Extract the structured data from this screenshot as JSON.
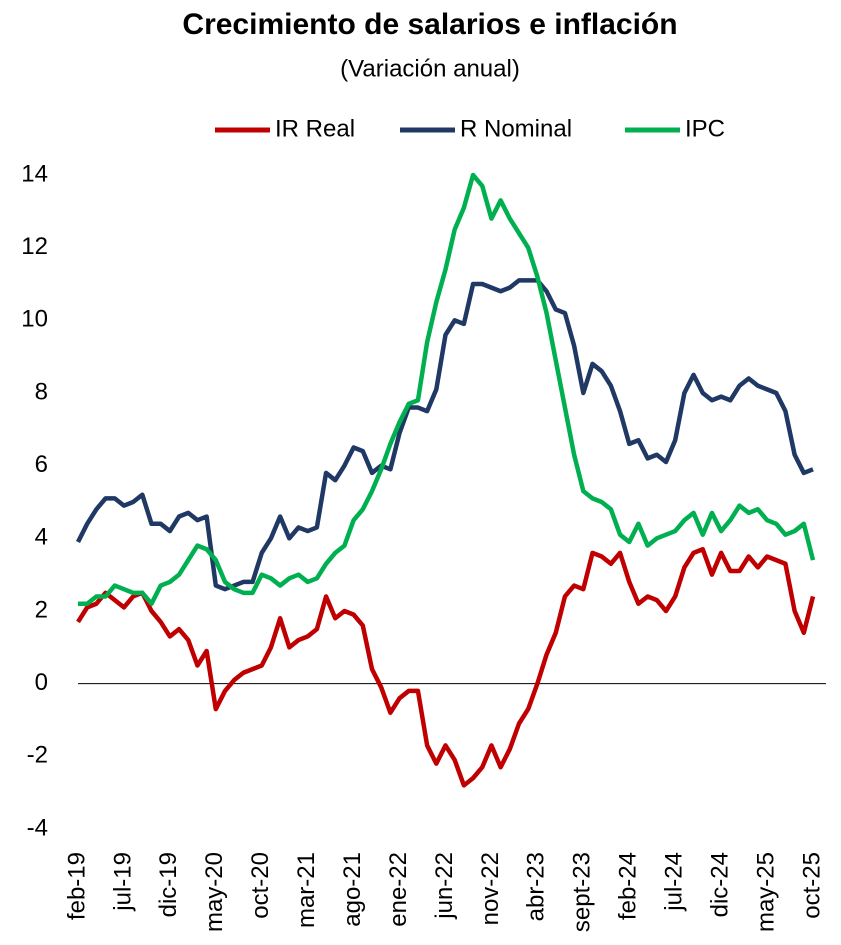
{
  "chart_data": {
    "type": "line",
    "title": "Crecimiento de salarios e inflación",
    "subtitle": "(Variación anual)",
    "categories": [
      "feb-19",
      null,
      null,
      null,
      null,
      "jul-19",
      null,
      null,
      null,
      null,
      "dic-19",
      null,
      null,
      null,
      null,
      "may-20",
      null,
      null,
      null,
      null,
      "oct-20",
      null,
      null,
      null,
      null,
      "mar-21",
      null,
      null,
      null,
      null,
      "ago-21",
      null,
      null,
      null,
      null,
      "ene-22",
      null,
      null,
      null,
      null,
      "jun-22",
      null,
      null,
      null,
      null,
      "nov-22",
      null,
      null,
      null,
      null,
      "abr-23",
      null,
      null,
      null,
      null,
      "sept-23",
      null,
      null,
      null,
      null,
      "feb-24",
      null,
      null,
      null,
      null,
      "jul-24",
      null,
      null,
      null,
      null,
      "dic-24",
      null,
      null,
      null,
      null,
      "may-25",
      null,
      null,
      null,
      null,
      "oct-25"
    ],
    "series": [
      {
        "name": "IR Real",
        "color": "#c00000",
        "values": [
          1.7,
          2.1,
          2.2,
          2.5,
          2.3,
          2.1,
          2.4,
          2.5,
          2.0,
          1.7,
          1.3,
          1.5,
          1.2,
          0.5,
          0.9,
          -0.7,
          -0.2,
          0.1,
          0.3,
          0.4,
          0.5,
          1.0,
          1.8,
          1.0,
          1.2,
          1.3,
          1.5,
          2.4,
          1.8,
          2.0,
          1.9,
          1.6,
          0.4,
          -0.1,
          -0.8,
          -0.4,
          -0.2,
          -0.2,
          -1.7,
          -2.2,
          -1.7,
          -2.1,
          -2.8,
          -2.6,
          -2.3,
          -1.7,
          -2.3,
          -1.8,
          -1.1,
          -0.7,
          0.0,
          0.8,
          1.4,
          2.4,
          2.7,
          2.6,
          3.6,
          3.5,
          3.3,
          3.6,
          2.8,
          2.2,
          2.4,
          2.3,
          2.0,
          2.4,
          3.2,
          3.6,
          3.7,
          3.0,
          3.6,
          3.1,
          3.1,
          3.5,
          3.2,
          3.5,
          3.4,
          3.3,
          2.0,
          1.4,
          2.4
        ]
      },
      {
        "name": "R Nominal",
        "color": "#1f3864",
        "values": [
          3.9,
          4.4,
          4.8,
          5.1,
          5.1,
          4.9,
          5.0,
          5.2,
          4.4,
          4.4,
          4.2,
          4.6,
          4.7,
          4.5,
          4.6,
          2.7,
          2.6,
          2.7,
          2.8,
          2.8,
          3.6,
          4.0,
          4.6,
          4.0,
          4.3,
          4.2,
          4.3,
          5.8,
          5.6,
          6.0,
          6.5,
          6.4,
          5.8,
          6.0,
          5.9,
          6.9,
          7.6,
          7.6,
          7.5,
          8.1,
          9.6,
          10.0,
          9.9,
          11.0,
          11.0,
          10.9,
          10.8,
          10.9,
          11.1,
          11.1,
          11.1,
          10.8,
          10.3,
          10.2,
          9.3,
          8.0,
          8.8,
          8.6,
          8.2,
          7.5,
          6.6,
          6.7,
          6.2,
          6.3,
          6.1,
          6.7,
          8.0,
          8.5,
          8.0,
          7.8,
          7.9,
          7.8,
          8.2,
          8.4,
          8.2,
          8.1,
          8.0,
          7.5,
          6.3,
          5.8,
          5.9
        ]
      },
      {
        "name": "IPC",
        "color": "#00b050",
        "values": [
          2.2,
          2.2,
          2.4,
          2.4,
          2.7,
          2.6,
          2.5,
          2.5,
          2.2,
          2.7,
          2.8,
          3.0,
          3.4,
          3.8,
          3.7,
          3.4,
          2.8,
          2.6,
          2.5,
          2.5,
          3.0,
          2.9,
          2.7,
          2.9,
          3.0,
          2.8,
          2.9,
          3.3,
          3.6,
          3.8,
          4.5,
          4.8,
          5.3,
          5.9,
          6.6,
          7.2,
          7.7,
          7.8,
          9.4,
          10.5,
          11.4,
          12.5,
          13.1,
          14.0,
          13.7,
          12.8,
          13.3,
          12.8,
          12.4,
          12.0,
          11.2,
          10.2,
          8.9,
          7.6,
          6.3,
          5.3,
          5.1,
          5.0,
          4.8,
          4.1,
          3.9,
          4.4,
          3.8,
          4.0,
          4.1,
          4.2,
          4.5,
          4.7,
          4.1,
          4.7,
          4.2,
          4.5,
          4.9,
          4.7,
          4.8,
          4.5,
          4.4,
          4.1,
          4.2,
          4.4,
          3.4
        ]
      }
    ],
    "ylim": [
      -4,
      14
    ],
    "yticks": [
      -4,
      -2,
      0,
      2,
      4,
      6,
      8,
      10,
      12,
      14
    ],
    "grid": false,
    "legend": "top"
  }
}
